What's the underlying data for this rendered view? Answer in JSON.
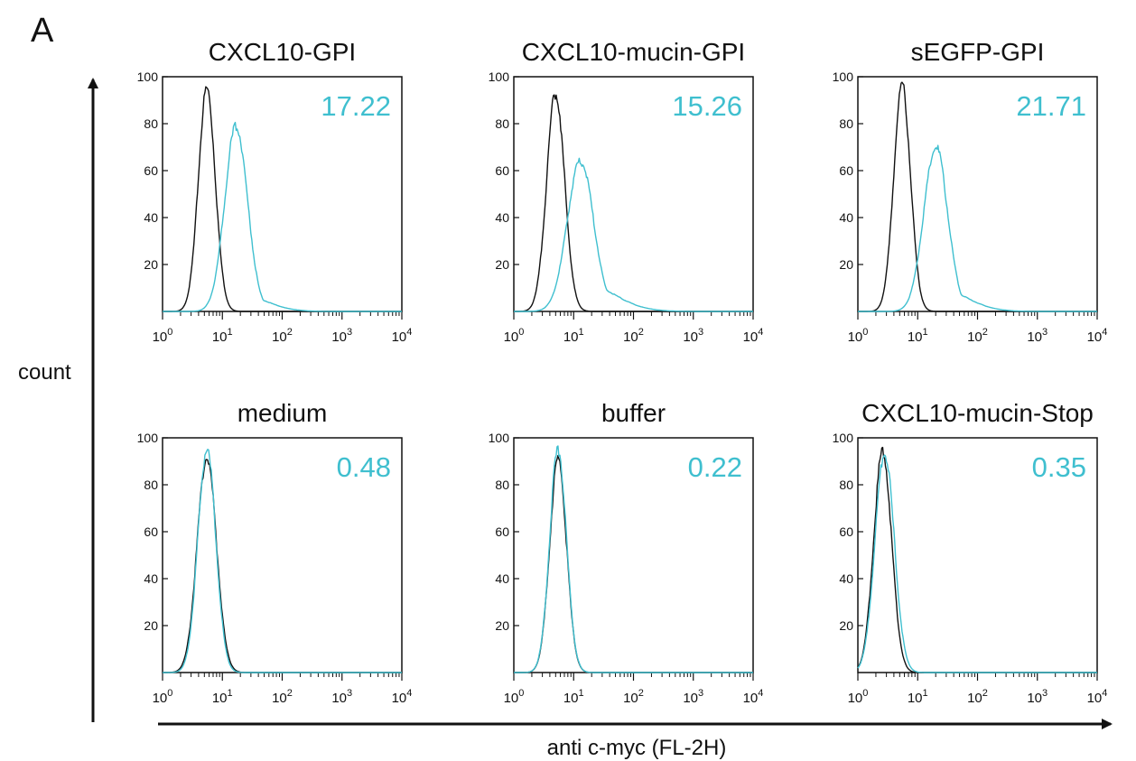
{
  "panel_letter": "A",
  "y_axis_label": "count",
  "x_axis_label": "anti c-myc (FL-2H)",
  "colors": {
    "control": "#111111",
    "stained": "#3fbfcf"
  },
  "chart_data": [
    {
      "type": "line",
      "title": "CXCL10-GPI",
      "value_label": "17.22",
      "x_scale": "log",
      "xlim": [
        1,
        10000
      ],
      "ylim": [
        0,
        100
      ],
      "yticks": [
        20,
        40,
        60,
        80,
        100
      ],
      "xticks": [
        "10^0",
        "10^1",
        "10^2",
        "10^3",
        "10^4"
      ],
      "series": [
        {
          "color": "#111111",
          "peak_x": 5.5,
          "peak_y": 95,
          "spread_decades": 0.14
        },
        {
          "color": "#3fbfcf",
          "peak_x": 17,
          "peak_y": 79,
          "spread_decades": 0.19,
          "right_tail": 0.1
        }
      ]
    },
    {
      "type": "line",
      "title": "CXCL10-mucin-GPI",
      "value_label": "15.26",
      "x_scale": "log",
      "xlim": [
        1,
        10000
      ],
      "ylim": [
        0,
        100
      ],
      "yticks": [
        20,
        40,
        60,
        80,
        100
      ],
      "xticks": [
        "10^0",
        "10^1",
        "10^2",
        "10^3",
        "10^4"
      ],
      "series": [
        {
          "color": "#111111",
          "peak_x": 5,
          "peak_y": 93,
          "spread_decades": 0.15
        },
        {
          "color": "#3fbfcf",
          "peak_x": 13,
          "peak_y": 64,
          "spread_decades": 0.22,
          "right_tail": 0.2
        }
      ]
    },
    {
      "type": "line",
      "title": "sEGFP-GPI",
      "value_label": "21.71",
      "x_scale": "log",
      "xlim": [
        1,
        10000
      ],
      "ylim": [
        0,
        100
      ],
      "yticks": [
        20,
        40,
        60,
        80,
        100
      ],
      "xticks": [
        "10^0",
        "10^1",
        "10^2",
        "10^3",
        "10^4"
      ],
      "series": [
        {
          "color": "#111111",
          "peak_x": 5.5,
          "peak_y": 96,
          "spread_decades": 0.14
        },
        {
          "color": "#3fbfcf",
          "peak_x": 20,
          "peak_y": 70,
          "spread_decades": 0.2,
          "right_tail": 0.15
        }
      ]
    },
    {
      "type": "line",
      "title": "medium",
      "value_label": "0.48",
      "x_scale": "log",
      "xlim": [
        1,
        10000
      ],
      "ylim": [
        0,
        100
      ],
      "yticks": [
        20,
        40,
        60,
        80,
        100
      ],
      "xticks": [
        "10^0",
        "10^1",
        "10^2",
        "10^3",
        "10^4"
      ],
      "series": [
        {
          "color": "#111111",
          "peak_x": 5.5,
          "peak_y": 92,
          "spread_decades": 0.16
        },
        {
          "color": "#3fbfcf",
          "peak_x": 5.5,
          "peak_y": 95,
          "spread_decades": 0.15
        }
      ]
    },
    {
      "type": "line",
      "title": "buffer",
      "value_label": "0.22",
      "x_scale": "log",
      "xlim": [
        1,
        10000
      ],
      "ylim": [
        0,
        100
      ],
      "yticks": [
        20,
        40,
        60,
        80,
        100
      ],
      "xticks": [
        "10^0",
        "10^1",
        "10^2",
        "10^3",
        "10^4"
      ],
      "series": [
        {
          "color": "#111111",
          "peak_x": 5.5,
          "peak_y": 91,
          "spread_decades": 0.14
        },
        {
          "color": "#3fbfcf",
          "peak_x": 5.5,
          "peak_y": 95,
          "spread_decades": 0.14
        }
      ]
    },
    {
      "type": "line",
      "title": "CXCL10-mucin-Stop",
      "value_label": "0.35",
      "x_scale": "log",
      "xlim": [
        1,
        10000
      ],
      "ylim": [
        0,
        100
      ],
      "yticks": [
        20,
        40,
        60,
        80,
        100
      ],
      "xticks": [
        "10^0",
        "10^1",
        "10^2",
        "10^3",
        "10^4"
      ],
      "series": [
        {
          "color": "#111111",
          "peak_x": 2.6,
          "peak_y": 94,
          "spread_decades": 0.15
        },
        {
          "color": "#3fbfcf",
          "peak_x": 2.8,
          "peak_y": 94,
          "spread_decades": 0.16
        }
      ]
    }
  ]
}
